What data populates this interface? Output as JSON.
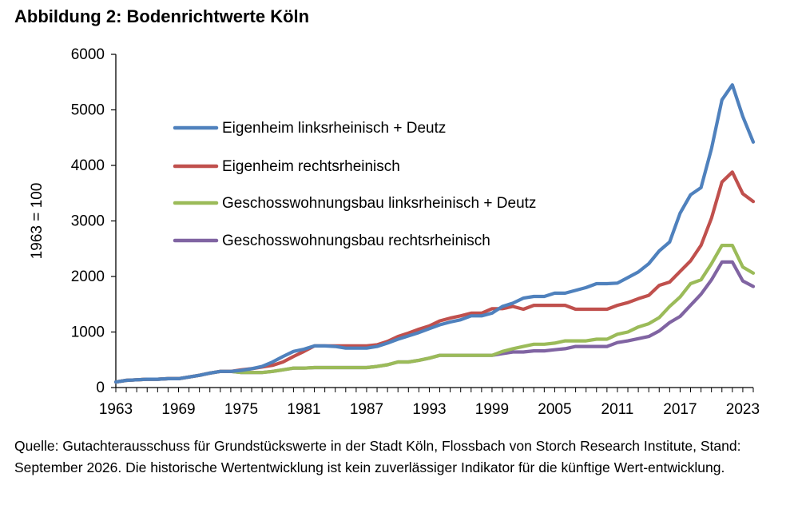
{
  "title": "Abbildung 2: Bodenrichtwerte Köln",
  "source": "Quelle: Gutachterausschuss für Grundstückswerte in der Stadt Köln, Flossbach von Storch Research Institute, Stand: September 2026. Die historische Wertentwicklung ist kein zuverlässiger Indikator für die künftige Wert-entwicklung.",
  "chart_data": {
    "type": "line",
    "title": "Abbildung 2: Bodenrichtwerte Köln",
    "xlabel": "",
    "ylabel": "1963 = 100",
    "xlim": [
      1963,
      2024
    ],
    "ylim": [
      0,
      6000
    ],
    "x_ticks": [
      "1963",
      "1969",
      "1975",
      "1981",
      "1987",
      "1993",
      "1999",
      "2005",
      "2011",
      "2017",
      "2023"
    ],
    "y_ticks": [
      "0",
      "1000",
      "2000",
      "3000",
      "4000",
      "5000",
      "6000"
    ],
    "grid": false,
    "legend_position": "upper-left inside",
    "x": [
      1963,
      1964,
      1965,
      1966,
      1967,
      1968,
      1969,
      1970,
      1971,
      1972,
      1973,
      1974,
      1975,
      1976,
      1977,
      1978,
      1979,
      1980,
      1981,
      1982,
      1983,
      1984,
      1985,
      1986,
      1987,
      1988,
      1989,
      1990,
      1991,
      1992,
      1993,
      1994,
      1995,
      1996,
      1997,
      1998,
      1999,
      2000,
      2001,
      2002,
      2003,
      2004,
      2005,
      2006,
      2007,
      2008,
      2009,
      2010,
      2011,
      2012,
      2013,
      2014,
      2015,
      2016,
      2017,
      2018,
      2019,
      2020,
      2021,
      2022,
      2023,
      2024
    ],
    "series": [
      {
        "name": "Eigenheim linksrheinisch + Deutz",
        "color": "#4F81BD",
        "values": [
          100,
          130,
          140,
          150,
          150,
          160,
          160,
          190,
          220,
          260,
          290,
          290,
          310,
          340,
          380,
          460,
          560,
          650,
          690,
          750,
          750,
          740,
          710,
          710,
          710,
          740,
          800,
          870,
          930,
          990,
          1060,
          1130,
          1180,
          1220,
          1290,
          1290,
          1340,
          1460,
          1520,
          1610,
          1640,
          1640,
          1700,
          1700,
          1750,
          1800,
          1870,
          1870,
          1880,
          1980,
          2080,
          2230,
          2460,
          2620,
          3140,
          3470,
          3600,
          4300,
          5180,
          5450,
          4880,
          4420
        ]
      },
      {
        "name": "Eigenheim rechtsrheinisch",
        "color": "#C0504D",
        "values": [
          100,
          130,
          140,
          150,
          150,
          160,
          160,
          190,
          220,
          260,
          290,
          290,
          320,
          340,
          370,
          400,
          460,
          560,
          650,
          750,
          750,
          750,
          750,
          750,
          750,
          770,
          830,
          920,
          980,
          1050,
          1110,
          1200,
          1250,
          1290,
          1340,
          1340,
          1420,
          1420,
          1460,
          1410,
          1480,
          1480,
          1480,
          1480,
          1410,
          1410,
          1410,
          1410,
          1480,
          1530,
          1600,
          1660,
          1840,
          1900,
          2090,
          2280,
          2560,
          3050,
          3700,
          3880,
          3490,
          3350
        ]
      },
      {
        "name": "Geschosswohnungsbau linksrheinisch + Deutz",
        "color": "#9BBB59",
        "values": [
          100,
          130,
          140,
          150,
          150,
          160,
          160,
          190,
          220,
          260,
          290,
          290,
          270,
          270,
          270,
          290,
          320,
          350,
          350,
          360,
          360,
          360,
          360,
          360,
          360,
          380,
          410,
          460,
          460,
          490,
          530,
          580,
          580,
          580,
          580,
          580,
          580,
          650,
          700,
          740,
          780,
          780,
          800,
          840,
          840,
          840,
          870,
          870,
          960,
          1000,
          1090,
          1150,
          1260,
          1460,
          1630,
          1870,
          1940,
          2230,
          2560,
          2560,
          2170,
          2060
        ]
      },
      {
        "name": "Geschosswohnungsbau rechtsrheinisch",
        "color": "#8064A2",
        "values": [
          100,
          130,
          140,
          150,
          150,
          160,
          160,
          190,
          220,
          260,
          290,
          290,
          270,
          270,
          270,
          290,
          320,
          350,
          350,
          360,
          360,
          360,
          360,
          360,
          360,
          380,
          410,
          460,
          460,
          490,
          530,
          580,
          580,
          580,
          580,
          580,
          580,
          610,
          640,
          640,
          660,
          660,
          680,
          700,
          740,
          740,
          740,
          740,
          810,
          840,
          880,
          920,
          1020,
          1170,
          1280,
          1480,
          1680,
          1940,
          2260,
          2260,
          1920,
          1820
        ]
      }
    ]
  }
}
